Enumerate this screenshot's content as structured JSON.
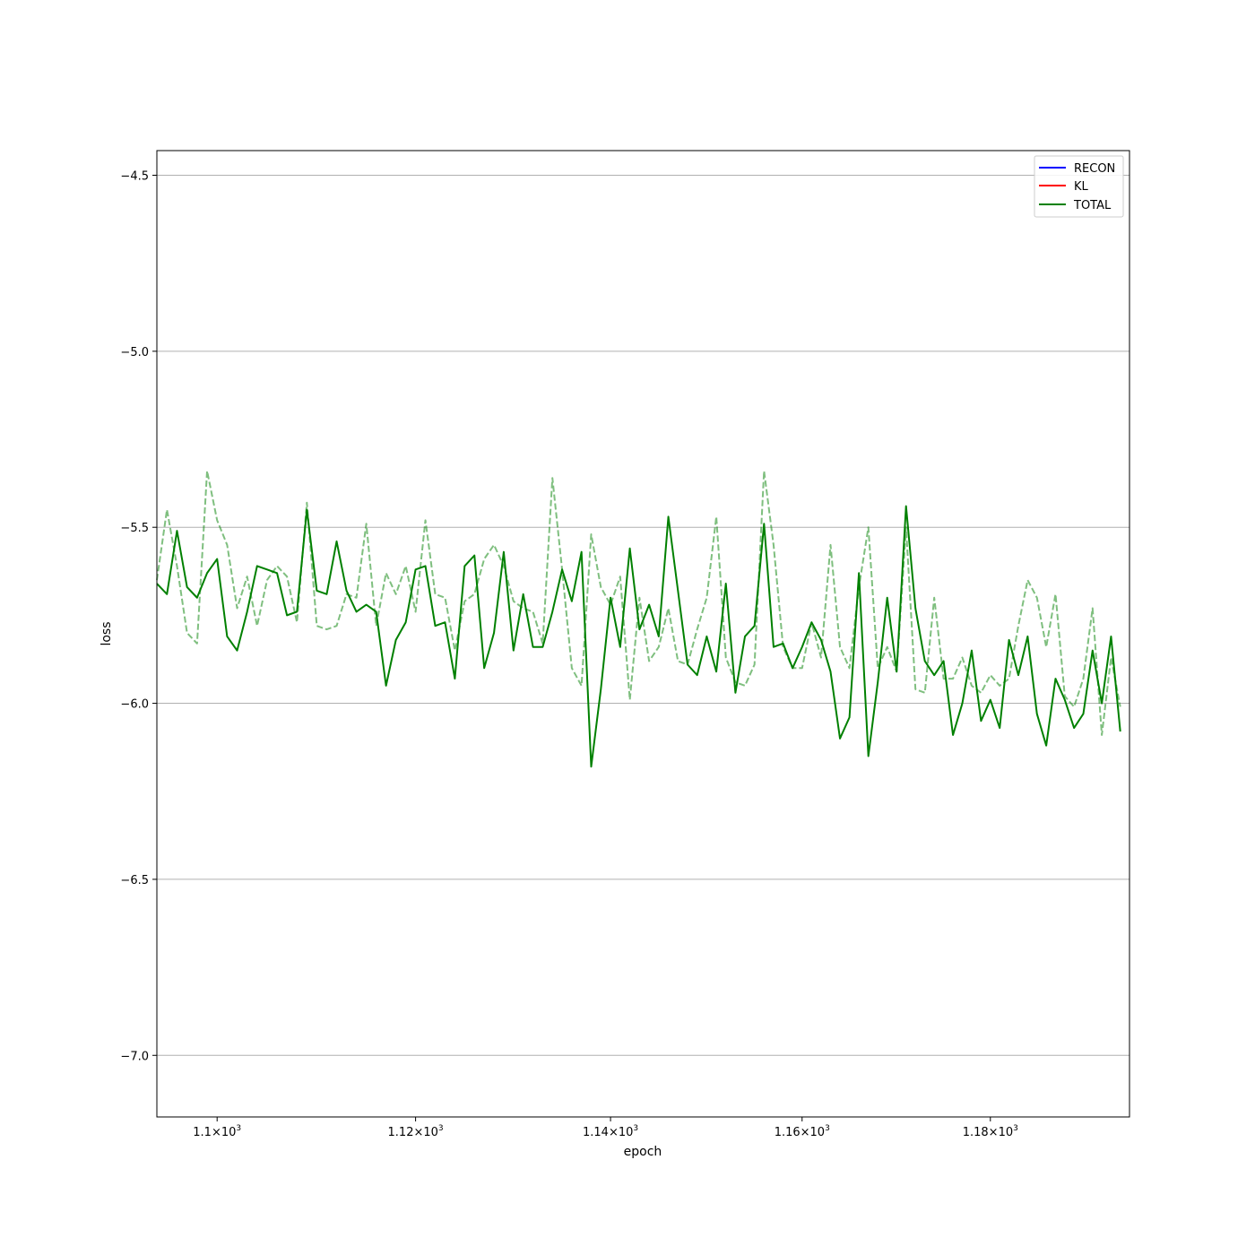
{
  "chart_data": {
    "type": "line",
    "xlabel": "epoch",
    "ylabel": "loss",
    "xscale": "log",
    "xlim": [
      1094,
      1195
    ],
    "ylim": [
      -7.175,
      -4.43
    ],
    "grid": "horizontal",
    "legend_position": "top-right",
    "x_ticks": [
      {
        "value": 1100,
        "mantissa": "1.1",
        "exponent": "3"
      },
      {
        "value": 1120,
        "mantissa": "1.12",
        "exponent": "3"
      },
      {
        "value": 1140,
        "mantissa": "1.14",
        "exponent": "3"
      },
      {
        "value": 1160,
        "mantissa": "1.16",
        "exponent": "3"
      },
      {
        "value": 1180,
        "mantissa": "1.18",
        "exponent": "3"
      }
    ],
    "x_tick_times": "×10",
    "y_ticks": [
      {
        "value": -4.5,
        "label": "−4.5"
      },
      {
        "value": -5.0,
        "label": "−5.0"
      },
      {
        "value": -5.5,
        "label": "−5.5"
      },
      {
        "value": -6.0,
        "label": "−6.0"
      },
      {
        "value": -6.5,
        "label": "−6.5"
      },
      {
        "value": -7.0,
        "label": "−7.0"
      }
    ],
    "x_start": 1094,
    "series": [
      {
        "name": "RECON",
        "color": "#0000ff",
        "style": "solid",
        "values": []
      },
      {
        "name": "KL",
        "color": "#ff0000",
        "style": "solid",
        "values": []
      },
      {
        "name": "TOTAL",
        "color": "#008000",
        "style": "solid",
        "values": [
          -5.66,
          -5.69,
          -5.51,
          -5.67,
          -5.7,
          -5.63,
          -5.59,
          -5.81,
          -5.85,
          -5.74,
          -5.61,
          -5.62,
          -5.63,
          -5.75,
          -5.74,
          -5.45,
          -5.68,
          -5.69,
          -5.54,
          -5.68,
          -5.74,
          -5.72,
          -5.74,
          -5.95,
          -5.82,
          -5.77,
          -5.62,
          -5.61,
          -5.78,
          -5.77,
          -5.93,
          -5.61,
          -5.58,
          -5.9,
          -5.8,
          -5.57,
          -5.85,
          -5.69,
          -5.84,
          -5.84,
          -5.74,
          -5.62,
          -5.71,
          -5.57,
          -6.18,
          -5.96,
          -5.7,
          -5.84,
          -5.56,
          -5.79,
          -5.72,
          -5.81,
          -5.47,
          -5.68,
          -5.89,
          -5.92,
          -5.81,
          -5.91,
          -5.66,
          -5.97,
          -5.81,
          -5.78,
          -5.49,
          -5.84,
          -5.83,
          -5.9,
          -5.84,
          -5.77,
          -5.82,
          -5.91,
          -6.1,
          -6.04,
          -5.63,
          -6.15,
          -5.94,
          -5.7,
          -5.91,
          -5.44,
          -5.73,
          -5.88,
          -5.92,
          -5.88,
          -6.09,
          -6.0,
          -5.85,
          -6.05,
          -5.99,
          -6.07,
          -5.82,
          -5.92,
          -5.81,
          -6.03,
          -6.12,
          -5.93,
          -5.99,
          -6.07,
          -6.03,
          -5.85,
          -6.0,
          -5.81,
          -6.08
        ]
      },
      {
        "name": "TOTAL-smoothed",
        "color": "#008000",
        "style": "dashed",
        "values": [
          -5.65,
          -5.45,
          -5.61,
          -5.8,
          -5.83,
          -5.34,
          -5.48,
          -5.55,
          -5.73,
          -5.64,
          -5.78,
          -5.65,
          -5.61,
          -5.64,
          -5.77,
          -5.43,
          -5.78,
          -5.79,
          -5.78,
          -5.69,
          -5.7,
          -5.49,
          -5.78,
          -5.63,
          -5.69,
          -5.61,
          -5.74,
          -5.48,
          -5.69,
          -5.7,
          -5.85,
          -5.71,
          -5.69,
          -5.59,
          -5.55,
          -5.61,
          -5.71,
          -5.73,
          -5.74,
          -5.83,
          -5.36,
          -5.62,
          -5.9,
          -5.95,
          -5.52,
          -5.67,
          -5.72,
          -5.64,
          -5.99,
          -5.7,
          -5.88,
          -5.84,
          -5.73,
          -5.88,
          -5.89,
          -5.79,
          -5.7,
          -5.47,
          -5.87,
          -5.94,
          -5.95,
          -5.89,
          -5.34,
          -5.55,
          -5.84,
          -5.9,
          -5.9,
          -5.77,
          -5.87,
          -5.55,
          -5.84,
          -5.9,
          -5.67,
          -5.5,
          -5.9,
          -5.84,
          -5.91,
          -5.5,
          -5.96,
          -5.97,
          -5.7,
          -5.93,
          -5.93,
          -5.87,
          -5.95,
          -5.97,
          -5.92,
          -5.95,
          -5.93,
          -5.78,
          -5.65,
          -5.7,
          -5.84,
          -5.69,
          -5.98,
          -6.01,
          -5.93,
          -5.73,
          -6.09,
          -5.87,
          -6.01
        ]
      }
    ]
  }
}
